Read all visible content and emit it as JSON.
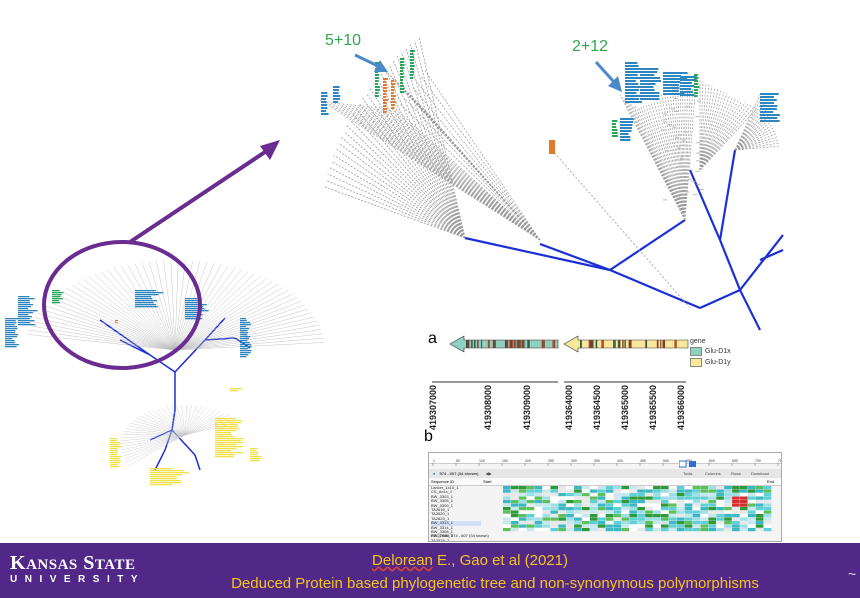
{
  "annotations": {
    "group1_label": "5+10",
    "group2_label": "2+12"
  },
  "panels": {
    "a_label": "a",
    "b_label": "b"
  },
  "panel_a": {
    "legend_title": "gene",
    "legend_items": [
      "Glu-D1x",
      "Glu-D1y"
    ],
    "legend_colors": [
      "#8fd0c0",
      "#fbe79a"
    ],
    "coordinates": [
      "419307000",
      "419308000",
      "419309000",
      "419364000",
      "419364500",
      "419365000",
      "419365500",
      "419366000"
    ]
  },
  "panel_b": {
    "ruler_ticks": [
      "1",
      "50",
      "100",
      "150",
      "200",
      "250",
      "300",
      "350",
      "400",
      "450",
      "500",
      "550",
      "600",
      "650",
      "700",
      "750"
    ],
    "selection_text": "574 - 607 (34 shown)",
    "toolbar_items": [
      "Tools",
      "Columns",
      "Rows",
      "Download"
    ],
    "header_sequence_id": "Sequence ID",
    "header_start": "Start",
    "header_end": "End",
    "sequence_ids": [
      "Lancer_1x10_1",
      "CS_Ax1x_1",
      "BW_3303_1",
      "BW_3305_1",
      "BW_3309_1",
      "TA2616_1",
      "TA2620_1",
      "TA2623_1",
      "BW_3313_1",
      "BW_3314_1",
      "BW_3308_1",
      "BW_2966_1",
      "TA2578_1"
    ],
    "footer_text": "PROTEIN: 574 - 607 (34 shown)"
  },
  "banner": {
    "logo_line1_big1": "K",
    "logo_line1_small1": "ANSAS",
    "logo_line1_big2": "S",
    "logo_line1_small2": "TATE",
    "logo_line2": "UNIVERSITY",
    "citation_authors": "Delorean",
    "citation_rest": " E., Gao et al (2021)",
    "citation_subtitle": "Deduced Protein based phylogenetic tree and non-synonymous polymorphisms"
  },
  "colors": {
    "purple": "#512888",
    "arrow_purple": "#6a2c91",
    "gold_text": "#f5c518",
    "tree_blue": "#1a2fd6",
    "label_blue": "#2e86c1",
    "label_green": "#27a35a",
    "label_orange": "#e07a2a",
    "label_yellow": "#f2e04a",
    "annotation_green": "#2ea84a",
    "annotation_arrow": "#4a8ac9"
  }
}
